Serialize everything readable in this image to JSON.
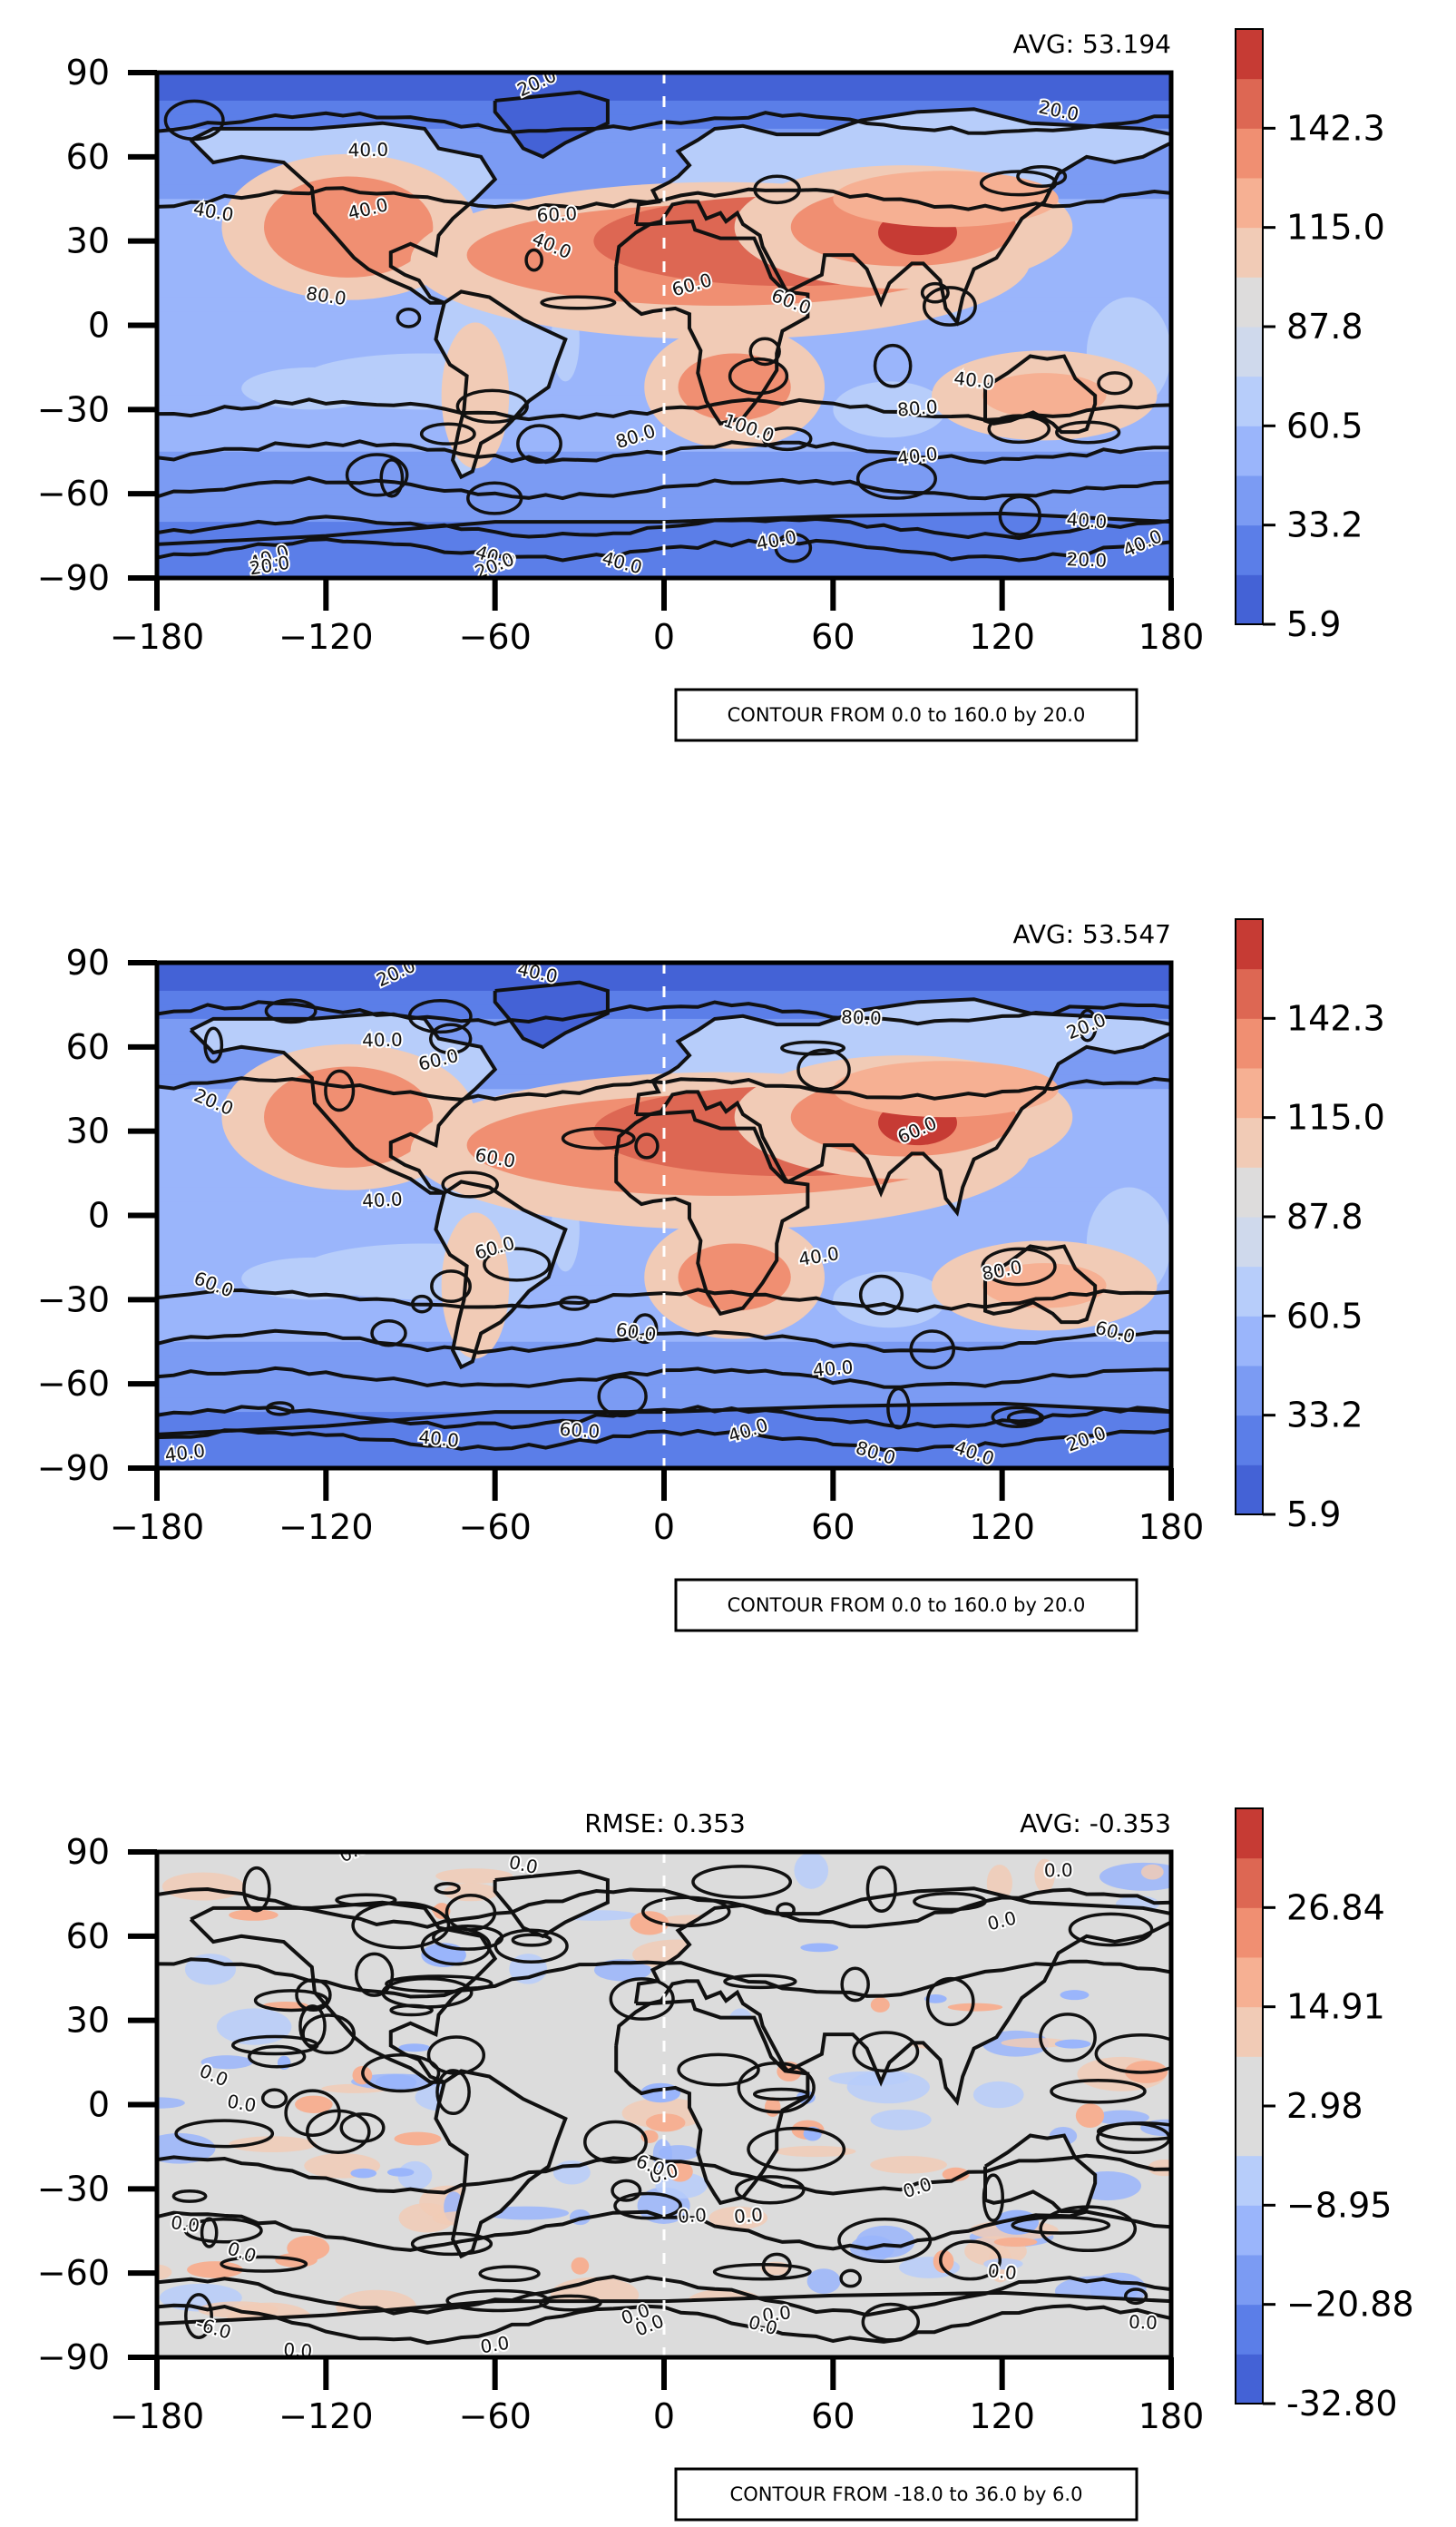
{
  "chart_data": [
    {
      "type": "heatmap",
      "x_ticks": [
        "−180",
        "−120",
        "−60",
        "0",
        "60",
        "120",
        "180"
      ],
      "y_ticks": [
        "90",
        "60",
        "30",
        "0",
        "−30",
        "−60",
        "−90"
      ],
      "xlim": [
        -180,
        180
      ],
      "ylim": [
        -90,
        90
      ],
      "avg_label": "AVG: 53.194",
      "rmse_label": "",
      "colorbar_ticks": [
        "5.9",
        "33.2",
        "60.5",
        "87.8",
        "115.0",
        "142.3"
      ],
      "contour_note": "CONTOUR FROM 0.0 to 160.0 by 20.0",
      "contour_labels": [
        "20.0",
        "20.0",
        "40.0",
        "40.0",
        "40.0",
        "40.0",
        "60.0",
        "60.0",
        "60.0",
        "80.0",
        "80.0",
        "80.0",
        "100.0",
        "40.0",
        "40.0",
        "40.0",
        "40.0",
        "40.0",
        "20.0",
        "20.0",
        "40.0",
        "20.0",
        "40.0",
        "40.0"
      ],
      "colormap": [
        "#4462d6",
        "#5b7ee8",
        "#7b9bf3",
        "#9ab5fb",
        "#b7cdfa",
        "#cfd9ec",
        "#dddcdc",
        "#f1cbb6",
        "#f6b093",
        "#f08f72",
        "#dd6753",
        "#c63b34"
      ]
    },
    {
      "type": "heatmap",
      "x_ticks": [
        "−180",
        "−120",
        "−60",
        "0",
        "60",
        "120",
        "180"
      ],
      "y_ticks": [
        "90",
        "60",
        "30",
        "0",
        "−30",
        "−60",
        "−90"
      ],
      "xlim": [
        -180,
        180
      ],
      "ylim": [
        -90,
        90
      ],
      "avg_label": "AVG: 53.547",
      "rmse_label": "",
      "colorbar_ticks": [
        "5.9",
        "33.2",
        "60.5",
        "87.8",
        "115.0",
        "142.3"
      ],
      "contour_note": "CONTOUR FROM 0.0 to 160.0 by 20.0",
      "contour_labels": [
        "20.0",
        "40.0",
        "40.0",
        "60.0",
        "20.0",
        "60.0",
        "40.0",
        "60.0",
        "60.0",
        "60.0",
        "40.0",
        "40.0",
        "40.0",
        "40.0",
        "40.0",
        "20.0",
        "80.0",
        "60.0",
        "40.0",
        "20.0",
        "60.0",
        "80.0",
        "80.0",
        "60.0"
      ],
      "colormap": [
        "#4462d6",
        "#5b7ee8",
        "#7b9bf3",
        "#9ab5fb",
        "#b7cdfa",
        "#cfd9ec",
        "#dddcdc",
        "#f1cbb6",
        "#f6b093",
        "#f08f72",
        "#dd6753",
        "#c63b34"
      ]
    },
    {
      "type": "heatmap",
      "x_ticks": [
        "−180",
        "−120",
        "−60",
        "0",
        "60",
        "120",
        "180"
      ],
      "y_ticks": [
        "90",
        "60",
        "30",
        "0",
        "−30",
        "−60",
        "−90"
      ],
      "xlim": [
        -180,
        180
      ],
      "ylim": [
        -90,
        90
      ],
      "avg_label": "AVG: -0.353",
      "rmse_label": "RMSE: 0.353",
      "colorbar_ticks": [
        "-32.80",
        "−20.88",
        "−8.95",
        "2.98",
        "14.91",
        "26.84"
      ],
      "contour_note": "CONTOUR FROM -18.0 to 36.0 by 6.0",
      "contour_labels": [
        "0.0",
        "0.0",
        "0.0",
        "0.0",
        "0.0",
        "0.0",
        "0.0",
        "0.0",
        "6.0",
        "0.0",
        "0.0",
        "0.0",
        "0.0",
        "0.0",
        "0.0",
        "0.0",
        "-6.0",
        "0.0",
        "0.0",
        "0.0",
        "0.0",
        "0.0"
      ],
      "colormap": [
        "#4462d6",
        "#5b7ee8",
        "#7b9bf3",
        "#9ab5fb",
        "#b7cdfa",
        "#dcdcdc",
        "#dcdcdc",
        "#f1cbb6",
        "#f6b093",
        "#f08f72",
        "#dd6753",
        "#c63b34"
      ]
    }
  ]
}
